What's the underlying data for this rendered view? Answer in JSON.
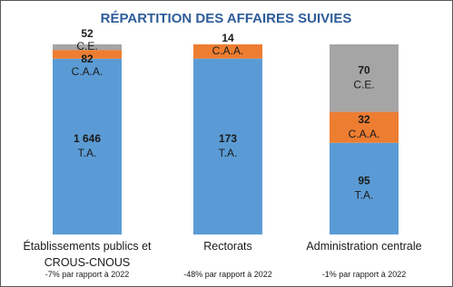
{
  "chart_data": {
    "type": "stacked_percent_bar",
    "title": "RÉPARTITION DES AFFAIRES SUIVIES",
    "categories": [
      "Établissements publics et CROUS-CNOUS",
      "Rectorats",
      "Administration centrale"
    ],
    "notes": [
      "-7% par rapport à 2022",
      "-48% par rapport à 2022",
      "-1% par rapport à 2022"
    ],
    "series": [
      {
        "name": "T.A.",
        "color": "#5b9bd5",
        "values": [
          1646,
          173,
          95
        ],
        "value_labels": [
          "1 646",
          "173",
          "95"
        ]
      },
      {
        "name": "C.A.A.",
        "color": "#ed7d31",
        "values": [
          82,
          14,
          32
        ]
      },
      {
        "name": "C.E.",
        "color": "#a5a5a5",
        "values": [
          52,
          null,
          70
        ]
      }
    ]
  }
}
